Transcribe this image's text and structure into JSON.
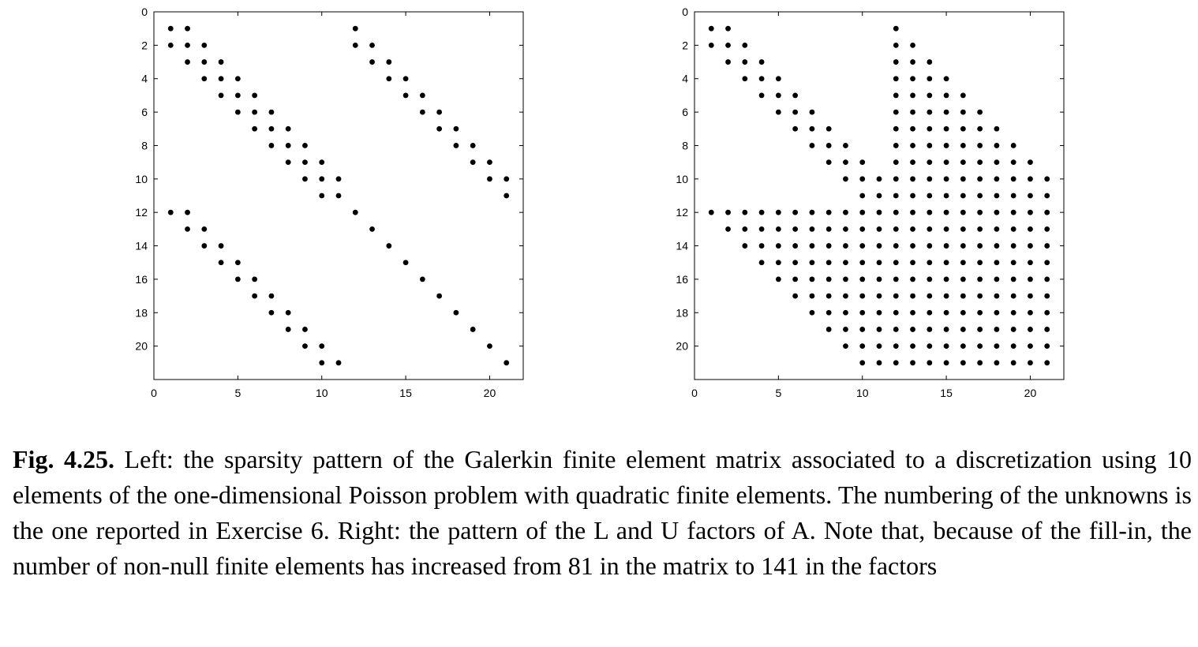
{
  "chart_data": [
    {
      "type": "scatter",
      "title": "",
      "xlabel": "",
      "ylabel": "",
      "xlim": [
        0,
        22
      ],
      "ylim": [
        22,
        0
      ],
      "y_inverted": true,
      "grid": false,
      "xticks": [
        0,
        5,
        10,
        15,
        20
      ],
      "yticks": [
        0,
        2,
        4,
        6,
        8,
        10,
        12,
        14,
        16,
        18,
        20
      ],
      "points": [
        [
          1,
          1
        ],
        [
          2,
          1
        ],
        [
          12,
          1
        ],
        [
          1,
          2
        ],
        [
          2,
          2
        ],
        [
          3,
          2
        ],
        [
          12,
          2
        ],
        [
          13,
          2
        ],
        [
          2,
          3
        ],
        [
          3,
          3
        ],
        [
          4,
          3
        ],
        [
          13,
          3
        ],
        [
          14,
          3
        ],
        [
          3,
          4
        ],
        [
          4,
          4
        ],
        [
          5,
          4
        ],
        [
          14,
          4
        ],
        [
          15,
          4
        ],
        [
          4,
          5
        ],
        [
          5,
          5
        ],
        [
          6,
          5
        ],
        [
          15,
          5
        ],
        [
          16,
          5
        ],
        [
          5,
          6
        ],
        [
          6,
          6
        ],
        [
          7,
          6
        ],
        [
          16,
          6
        ],
        [
          17,
          6
        ],
        [
          6,
          7
        ],
        [
          7,
          7
        ],
        [
          8,
          7
        ],
        [
          17,
          7
        ],
        [
          18,
          7
        ],
        [
          7,
          8
        ],
        [
          8,
          8
        ],
        [
          9,
          8
        ],
        [
          18,
          8
        ],
        [
          19,
          8
        ],
        [
          8,
          9
        ],
        [
          9,
          9
        ],
        [
          10,
          9
        ],
        [
          19,
          9
        ],
        [
          20,
          9
        ],
        [
          9,
          10
        ],
        [
          10,
          10
        ],
        [
          11,
          10
        ],
        [
          20,
          10
        ],
        [
          21,
          10
        ],
        [
          10,
          11
        ],
        [
          11,
          11
        ],
        [
          21,
          11
        ],
        [
          1,
          12
        ],
        [
          2,
          12
        ],
        [
          12,
          12
        ],
        [
          2,
          13
        ],
        [
          3,
          13
        ],
        [
          13,
          13
        ],
        [
          3,
          14
        ],
        [
          4,
          14
        ],
        [
          14,
          14
        ],
        [
          4,
          15
        ],
        [
          5,
          15
        ],
        [
          15,
          15
        ],
        [
          5,
          16
        ],
        [
          6,
          16
        ],
        [
          16,
          16
        ],
        [
          6,
          17
        ],
        [
          7,
          17
        ],
        [
          17,
          17
        ],
        [
          7,
          18
        ],
        [
          8,
          18
        ],
        [
          18,
          18
        ],
        [
          8,
          19
        ],
        [
          9,
          19
        ],
        [
          19,
          19
        ],
        [
          9,
          20
        ],
        [
          10,
          20
        ],
        [
          20,
          20
        ],
        [
          10,
          21
        ],
        [
          11,
          21
        ],
        [
          21,
          21
        ]
      ]
    },
    {
      "type": "scatter",
      "title": "",
      "xlabel": "",
      "ylabel": "",
      "xlim": [
        0,
        22
      ],
      "ylim": [
        22,
        0
      ],
      "y_inverted": true,
      "grid": false,
      "xticks": [
        0,
        5,
        10,
        15,
        20
      ],
      "yticks": [
        0,
        2,
        4,
        6,
        8,
        10,
        12,
        14,
        16,
        18,
        20
      ],
      "pattern": "L and U factors: within the band |i-j|<=1 for rows 1-11, columns 12..(11+i) for rows 1-11, row 12 all columns 1-21, rows 13-21 columns (i-11)..21; L-U fill-in structure"
    }
  ],
  "caption": {
    "label": "Fig. 4.25.",
    "text": " Left: the sparsity pattern of the Galerkin finite element matrix associated to a discretization using 10 elements of the one-dimensional Poisson problem with quadratic finite elements. The numbering of the unknowns is the one reported in Exercise 6. Right: the pattern of the L and U factors of A. Note that, because of the fill-in, the number of non-null finite elements has increased from 81 in the matrix to 141 in the factors"
  }
}
